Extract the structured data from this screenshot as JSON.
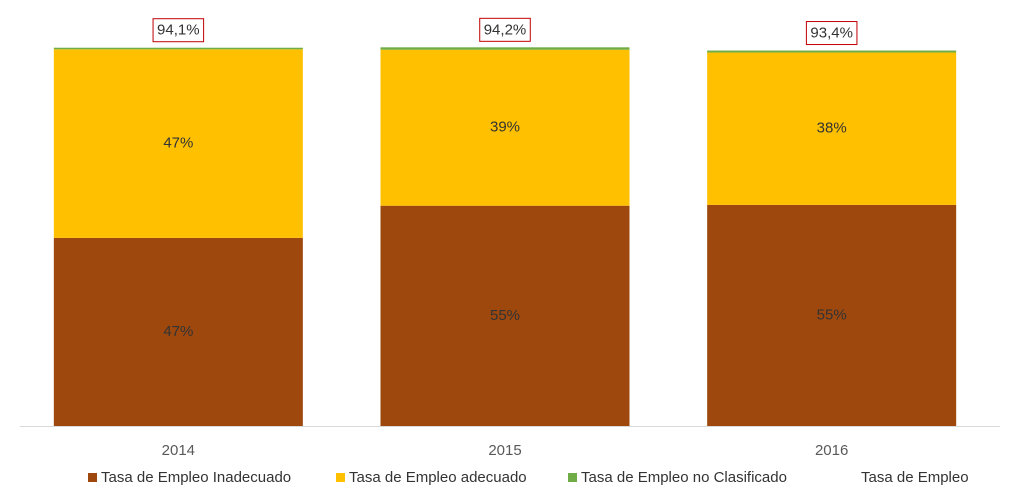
{
  "chart_data": {
    "type": "bar",
    "stacked": true,
    "categories": [
      "2014",
      "2015",
      "2016"
    ],
    "ylim": [
      0,
      100
    ],
    "series": [
      {
        "name": "Tasa de Empleo Inadecuado",
        "color": "#9e480e",
        "values": [
          46.8,
          54.8,
          55.0
        ],
        "value_labels": [
          "47%",
          "55%",
          "55%"
        ]
      },
      {
        "name": "Tasa de Empleo adecuado",
        "color": "#ffc000",
        "values": [
          46.9,
          38.8,
          37.9
        ],
        "value_labels": [
          "47%",
          "39%",
          "38%"
        ]
      },
      {
        "name": "Tasa de Empleo no Clasificado",
        "color": "#70ad47",
        "values": [
          0.4,
          0.6,
          0.5
        ]
      },
      {
        "name": "Tasa de Empleo",
        "type": "line",
        "color": "none",
        "values": [
          94.1,
          94.2,
          93.4
        ],
        "value_labels": [
          "94,1%",
          "94,2%",
          "93,4%"
        ]
      }
    ]
  }
}
